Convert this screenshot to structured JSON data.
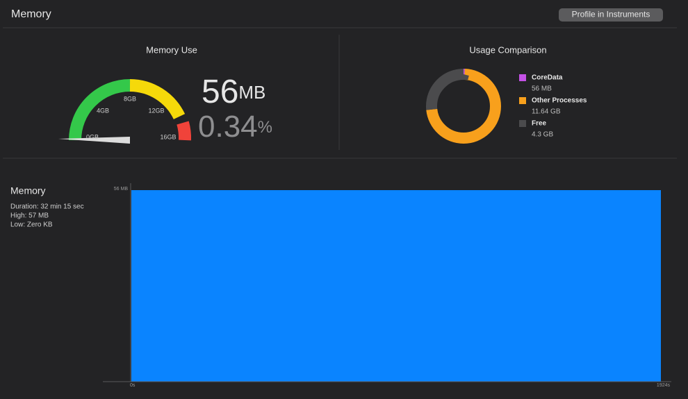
{
  "header": {
    "title": "Memory",
    "button": "Profile in Instruments"
  },
  "memory_use": {
    "title": "Memory Use",
    "gauge_labels": [
      "0GB",
      "4GB",
      "8GB",
      "12GB",
      "16GB"
    ],
    "value": "56",
    "value_unit": "MB",
    "percent": "0.34",
    "percent_unit": "%"
  },
  "usage_comparison": {
    "title": "Usage Comparison",
    "legend": [
      {
        "name": "CoreData",
        "value": "56 MB",
        "color": "#c451e6"
      },
      {
        "name": "Other Processes",
        "value": "11.64 GB",
        "color": "#f8a01c"
      },
      {
        "name": "Free",
        "value": "4.3 GB",
        "color": "#4b4b4d"
      }
    ]
  },
  "timeline": {
    "title": "Memory",
    "stats": [
      "Duration: 32 min 15 sec",
      "High: 57 MB",
      "Low: Zero KB"
    ],
    "y_label": "56 MB",
    "x_start": "0s",
    "x_end": "1924s"
  }
}
